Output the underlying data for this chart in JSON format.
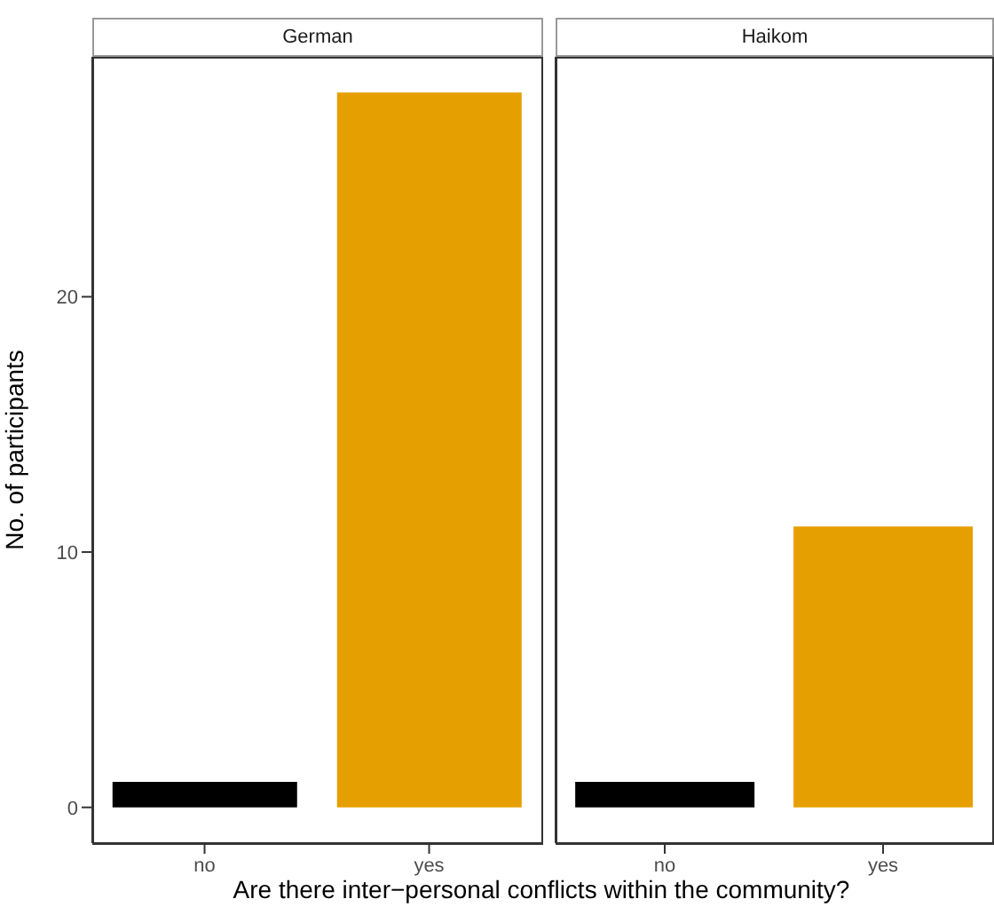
{
  "chart_data": [
    {
      "type": "bar",
      "title": "German",
      "categories": [
        "no",
        "yes"
      ],
      "values": [
        1,
        28
      ],
      "colors": [
        "#000000",
        "#e69f00"
      ],
      "ylim": [
        -1.4,
        29.4
      ],
      "yticks": [
        0,
        10,
        20
      ],
      "ylabel": "No. of participants",
      "xlabel": "Are there inter−personal conflicts within the community?",
      "grid": false,
      "legend": false
    },
    {
      "type": "bar",
      "title": "Haikom",
      "categories": [
        "no",
        "yes"
      ],
      "values": [
        1,
        11
      ],
      "colors": [
        "#000000",
        "#e69f00"
      ],
      "ylim": [
        -1.4,
        29.4
      ],
      "yticks": [
        0,
        10,
        20
      ],
      "tick_labels": "x",
      "grid": false,
      "legend": false
    }
  ]
}
